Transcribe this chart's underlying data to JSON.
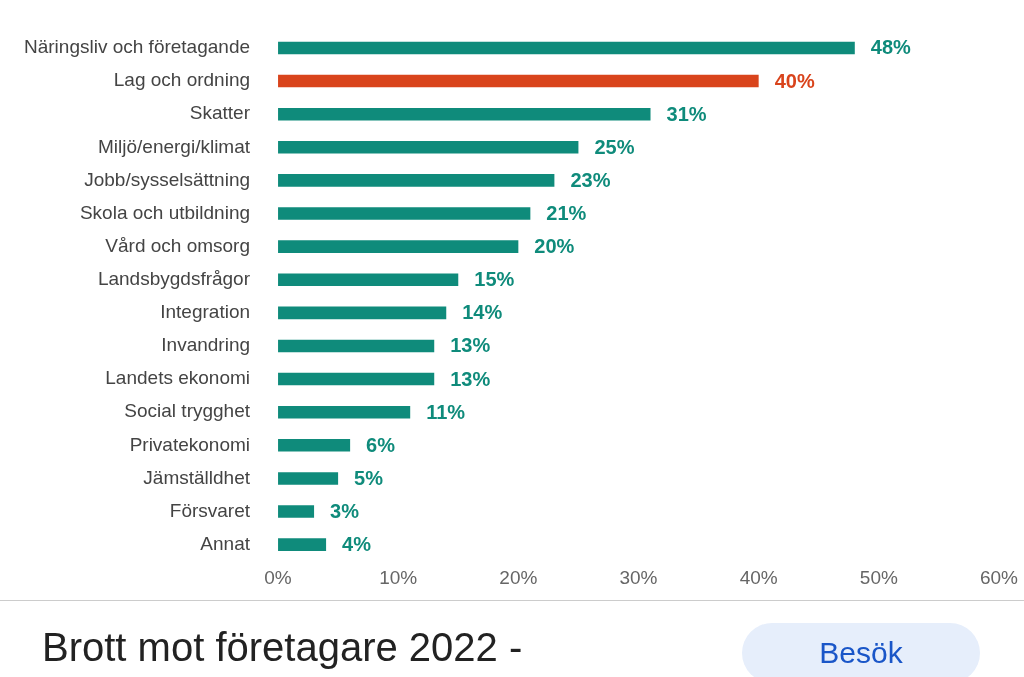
{
  "chart_data": {
    "type": "bar",
    "orientation": "horizontal",
    "categories": [
      "Näringsliv och företagande",
      "Lag och ordning",
      "Skatter",
      "Miljö/energi/klimat",
      "Jobb/sysselsättning",
      "Skola och utbildning",
      "Vård och omsorg",
      "Landsbygdsfrågor",
      "Integration",
      "Invandring",
      "Landets ekonomi",
      "Social trygghet",
      "Privatekonomi",
      "Jämställdhet",
      "Försvaret",
      "Annat"
    ],
    "values": [
      48,
      40,
      31,
      25,
      23,
      21,
      20,
      15,
      14,
      13,
      13,
      11,
      6,
      5,
      3,
      4
    ],
    "value_labels": [
      "48%",
      "40%",
      "31%",
      "25%",
      "23%",
      "21%",
      "20%",
      "15%",
      "14%",
      "13%",
      "13%",
      "11%",
      "6%",
      "5%",
      "3%",
      "4%"
    ],
    "colors": [
      "#0f8b7b",
      "#d9441c",
      "#0f8b7b",
      "#0f8b7b",
      "#0f8b7b",
      "#0f8b7b",
      "#0f8b7b",
      "#0f8b7b",
      "#0f8b7b",
      "#0f8b7b",
      "#0f8b7b",
      "#0f8b7b",
      "#0f8b7b",
      "#0f8b7b",
      "#0f8b7b",
      "#0f8b7b"
    ],
    "xlim": [
      0,
      60
    ],
    "xticks": [
      {
        "value": 0,
        "label": "0%"
      },
      {
        "value": 10,
        "label": "10%"
      },
      {
        "value": 20,
        "label": "20%"
      },
      {
        "value": 30,
        "label": "30%"
      },
      {
        "value": 40,
        "label": "40%"
      },
      {
        "value": 50,
        "label": "50%"
      },
      {
        "value": 60,
        "label": "60%"
      }
    ],
    "grid": false,
    "annotations": [
      "Brott mot företagare 2022 -",
      "Besök"
    ]
  }
}
